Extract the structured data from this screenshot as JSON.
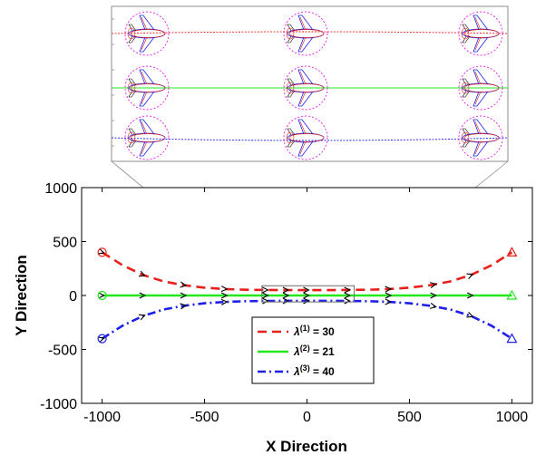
{
  "chart_data": {
    "type": "line",
    "title": "",
    "xlabel": "X Direction",
    "ylabel": "Y Direction",
    "xlim": [
      -1100,
      1100
    ],
    "ylim": [
      -1000,
      1000
    ],
    "xticks": [
      -1000,
      -500,
      0,
      500,
      1000
    ],
    "yticks": [
      -1000,
      -500,
      0,
      500,
      1000
    ],
    "xtick_labels": [
      "-1000",
      "-500",
      "0",
      "500",
      "1000"
    ],
    "ytick_labels": [
      "-1000",
      "-500",
      "0",
      "500",
      "1000"
    ],
    "grid": false,
    "legend_position": "bottom-center",
    "series": [
      {
        "name": "λ(1) = 30",
        "legend_prefix": "λ",
        "legend_sup": "(1)",
        "legend_suffix": " = 30",
        "color": "#e8201c",
        "dash": "dashed",
        "start_marker": "circle",
        "end_marker": "triangle",
        "x": [
          -1000,
          -900,
          -800,
          -700,
          -600,
          -500,
          -400,
          -300,
          -200,
          -100,
          0,
          100,
          200,
          300,
          400,
          500,
          600,
          700,
          800,
          900,
          1000
        ],
        "y": [
          400,
          280,
          190,
          130,
          95,
          72,
          60,
          53,
          51,
          50,
          50,
          50,
          51,
          53,
          60,
          72,
          95,
          130,
          190,
          280,
          400
        ]
      },
      {
        "name": "λ(2) = 21",
        "legend_prefix": "λ",
        "legend_sup": "(2)",
        "legend_suffix": " = 21",
        "color": "#22e81c",
        "dash": "solid",
        "start_marker": "circle",
        "end_marker": "triangle",
        "x": [
          -1000,
          1000
        ],
        "y": [
          0,
          0
        ]
      },
      {
        "name": "λ(3) = 40",
        "legend_prefix": "λ",
        "legend_sup": "(3)",
        "legend_suffix": " = 40",
        "color": "#1c20e8",
        "dash": "dashdot",
        "start_marker": "circle",
        "end_marker": "triangle",
        "x": [
          -1000,
          -900,
          -800,
          -700,
          -600,
          -500,
          -400,
          -300,
          -200,
          -100,
          0,
          100,
          200,
          300,
          400,
          500,
          600,
          700,
          800,
          900,
          1000
        ],
        "y": [
          -400,
          -280,
          -190,
          -130,
          -95,
          -72,
          -60,
          -53,
          -51,
          -50,
          -50,
          -50,
          -51,
          -53,
          -60,
          -72,
          -95,
          -130,
          -190,
          -280,
          -400
        ]
      }
    ],
    "arrow_x": [
      -1000,
      -800,
      -600,
      -400,
      -200,
      -100,
      0,
      200,
      400,
      620,
      800
    ],
    "zoom_region": {
      "x": [
        -220,
        230
      ],
      "y": [
        -60,
        90
      ]
    },
    "inset": {
      "description": "zoomed view of the region near x = -220..230 with aircraft outlines",
      "aircraft_columns": 3,
      "aircraft_rows": 3
    }
  }
}
